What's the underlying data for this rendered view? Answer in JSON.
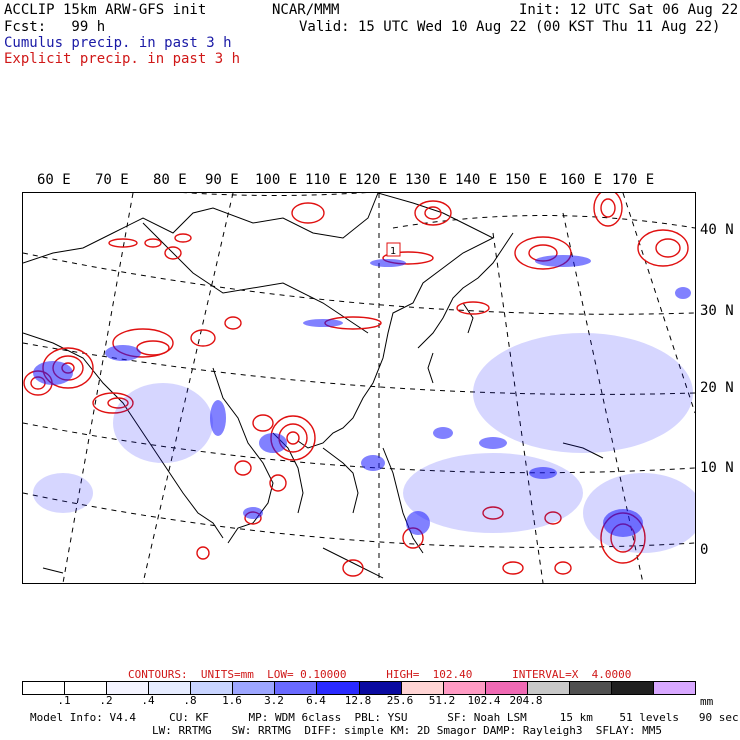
{
  "header": {
    "line1_left": "ACCLIP 15km ARW-GFS init",
    "line1_center": "NCAR/MMM",
    "line1_right": "Init: 12 UTC Sat 06 Aug 22",
    "line2_left": "Fcst:   99 h",
    "line2_right": "Valid: 15 UTC Wed 10 Aug 22 (00 KST Thu 11 Aug 22)",
    "legend_cumulus": "Cumulus precip. in past 3 h",
    "legend_explicit": "Explicit precip. in past 3 h"
  },
  "map": {
    "lon_labels": [
      "60 E",
      "70 E",
      "80 E",
      "90 E",
      "100 E",
      "110 E",
      "120 E",
      "130 E",
      "140 E",
      "150 E",
      "160 E",
      "170 E"
    ],
    "lat_labels": [
      "40 N",
      "30 N",
      "20 N",
      "10 N",
      "0"
    ],
    "station_marker": "1",
    "colors": {
      "cumulus": "#1a1aff",
      "explicit": "#e01010",
      "boundary": "#000000",
      "grid": "#000000"
    }
  },
  "contours": {
    "text": "CONTOURS:  UNITS=mm  LOW= 0.10000      HIGH=  102.40      INTERVAL=X  4.0000"
  },
  "colorbar": {
    "colors": [
      "#ffffff",
      "#ffffff",
      "#f4f4ff",
      "#e6ecff",
      "#c8d4ff",
      "#9da6ff",
      "#6a6aff",
      "#2a2aff",
      "#0a0aa0",
      "#ffd4d4",
      "#ff9bc4",
      "#f06ab4",
      "#c8c8c8",
      "#505050",
      "#202020",
      "#d8a8ff"
    ],
    "labels": [
      ".1",
      ".2",
      ".4",
      ".8",
      "1.6",
      "3.2",
      "6.4",
      "12.8",
      "25.6",
      "51.2",
      "102.4",
      "204.8"
    ],
    "units": "mm"
  },
  "footer": {
    "line1": "Model Info: V4.4     CU: KF      MP: WDM 6class  PBL: YSU      SF: Noah LSM     15 km    51 levels   90 sec",
    "line2": "LW: RRTMG   SW: RRTMG  DIFF: simple KM: 2D Smagor DAMP: Rayleigh3  SFLAY: MM5"
  }
}
